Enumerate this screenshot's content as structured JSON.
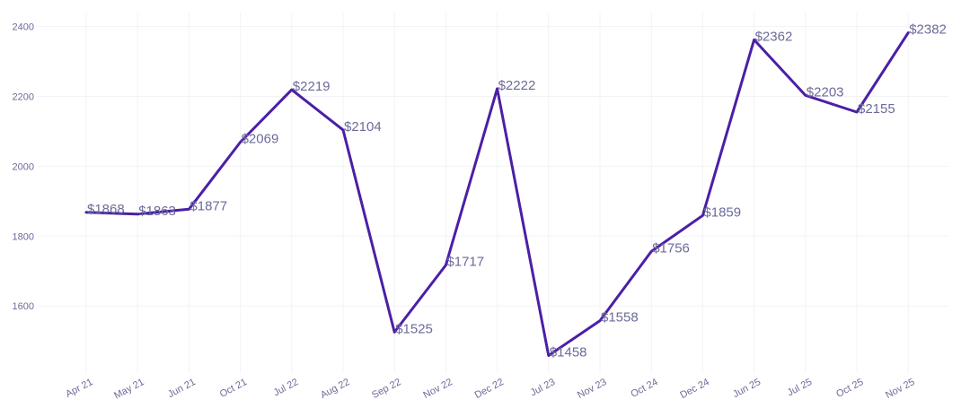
{
  "chart_data": {
    "type": "line",
    "categories": [
      "Apr 21",
      "May 21",
      "Jun 21",
      "Oct 21",
      "Jul 22",
      "Aug 22",
      "Sep 22",
      "Nov 22",
      "Dec 22",
      "Jul 23",
      "Nov 23",
      "Oct 24",
      "Dec 24",
      "Jun 25",
      "Jul 25",
      "Oct 25",
      "Nov 25"
    ],
    "series": [
      {
        "values": [
          1868,
          1863,
          1877,
          2069,
          2219,
          2104,
          1525,
          1717,
          2222,
          1458,
          1558,
          1756,
          1859,
          2362,
          2203,
          2155,
          2382
        ],
        "color": "#4b1fa6"
      }
    ],
    "data_labels": [
      "$1868",
      "$1863",
      "$1877",
      "$2069",
      "$2219",
      "$2104",
      "$1525",
      "$1717",
      "$2222",
      "$1458",
      "$1558",
      "$1756",
      "$1859",
      "$2362",
      "$2203",
      "$2155",
      "$2382"
    ],
    "yticks": [
      "1600",
      "1800",
      "2000",
      "2200",
      "2400"
    ],
    "ylim": [
      1408,
      2440
    ],
    "grid": true,
    "legend": "none",
    "colors": {
      "line": "#4b1fa6",
      "text": "#6b6b9a",
      "grid": "#f3f3f7"
    }
  }
}
